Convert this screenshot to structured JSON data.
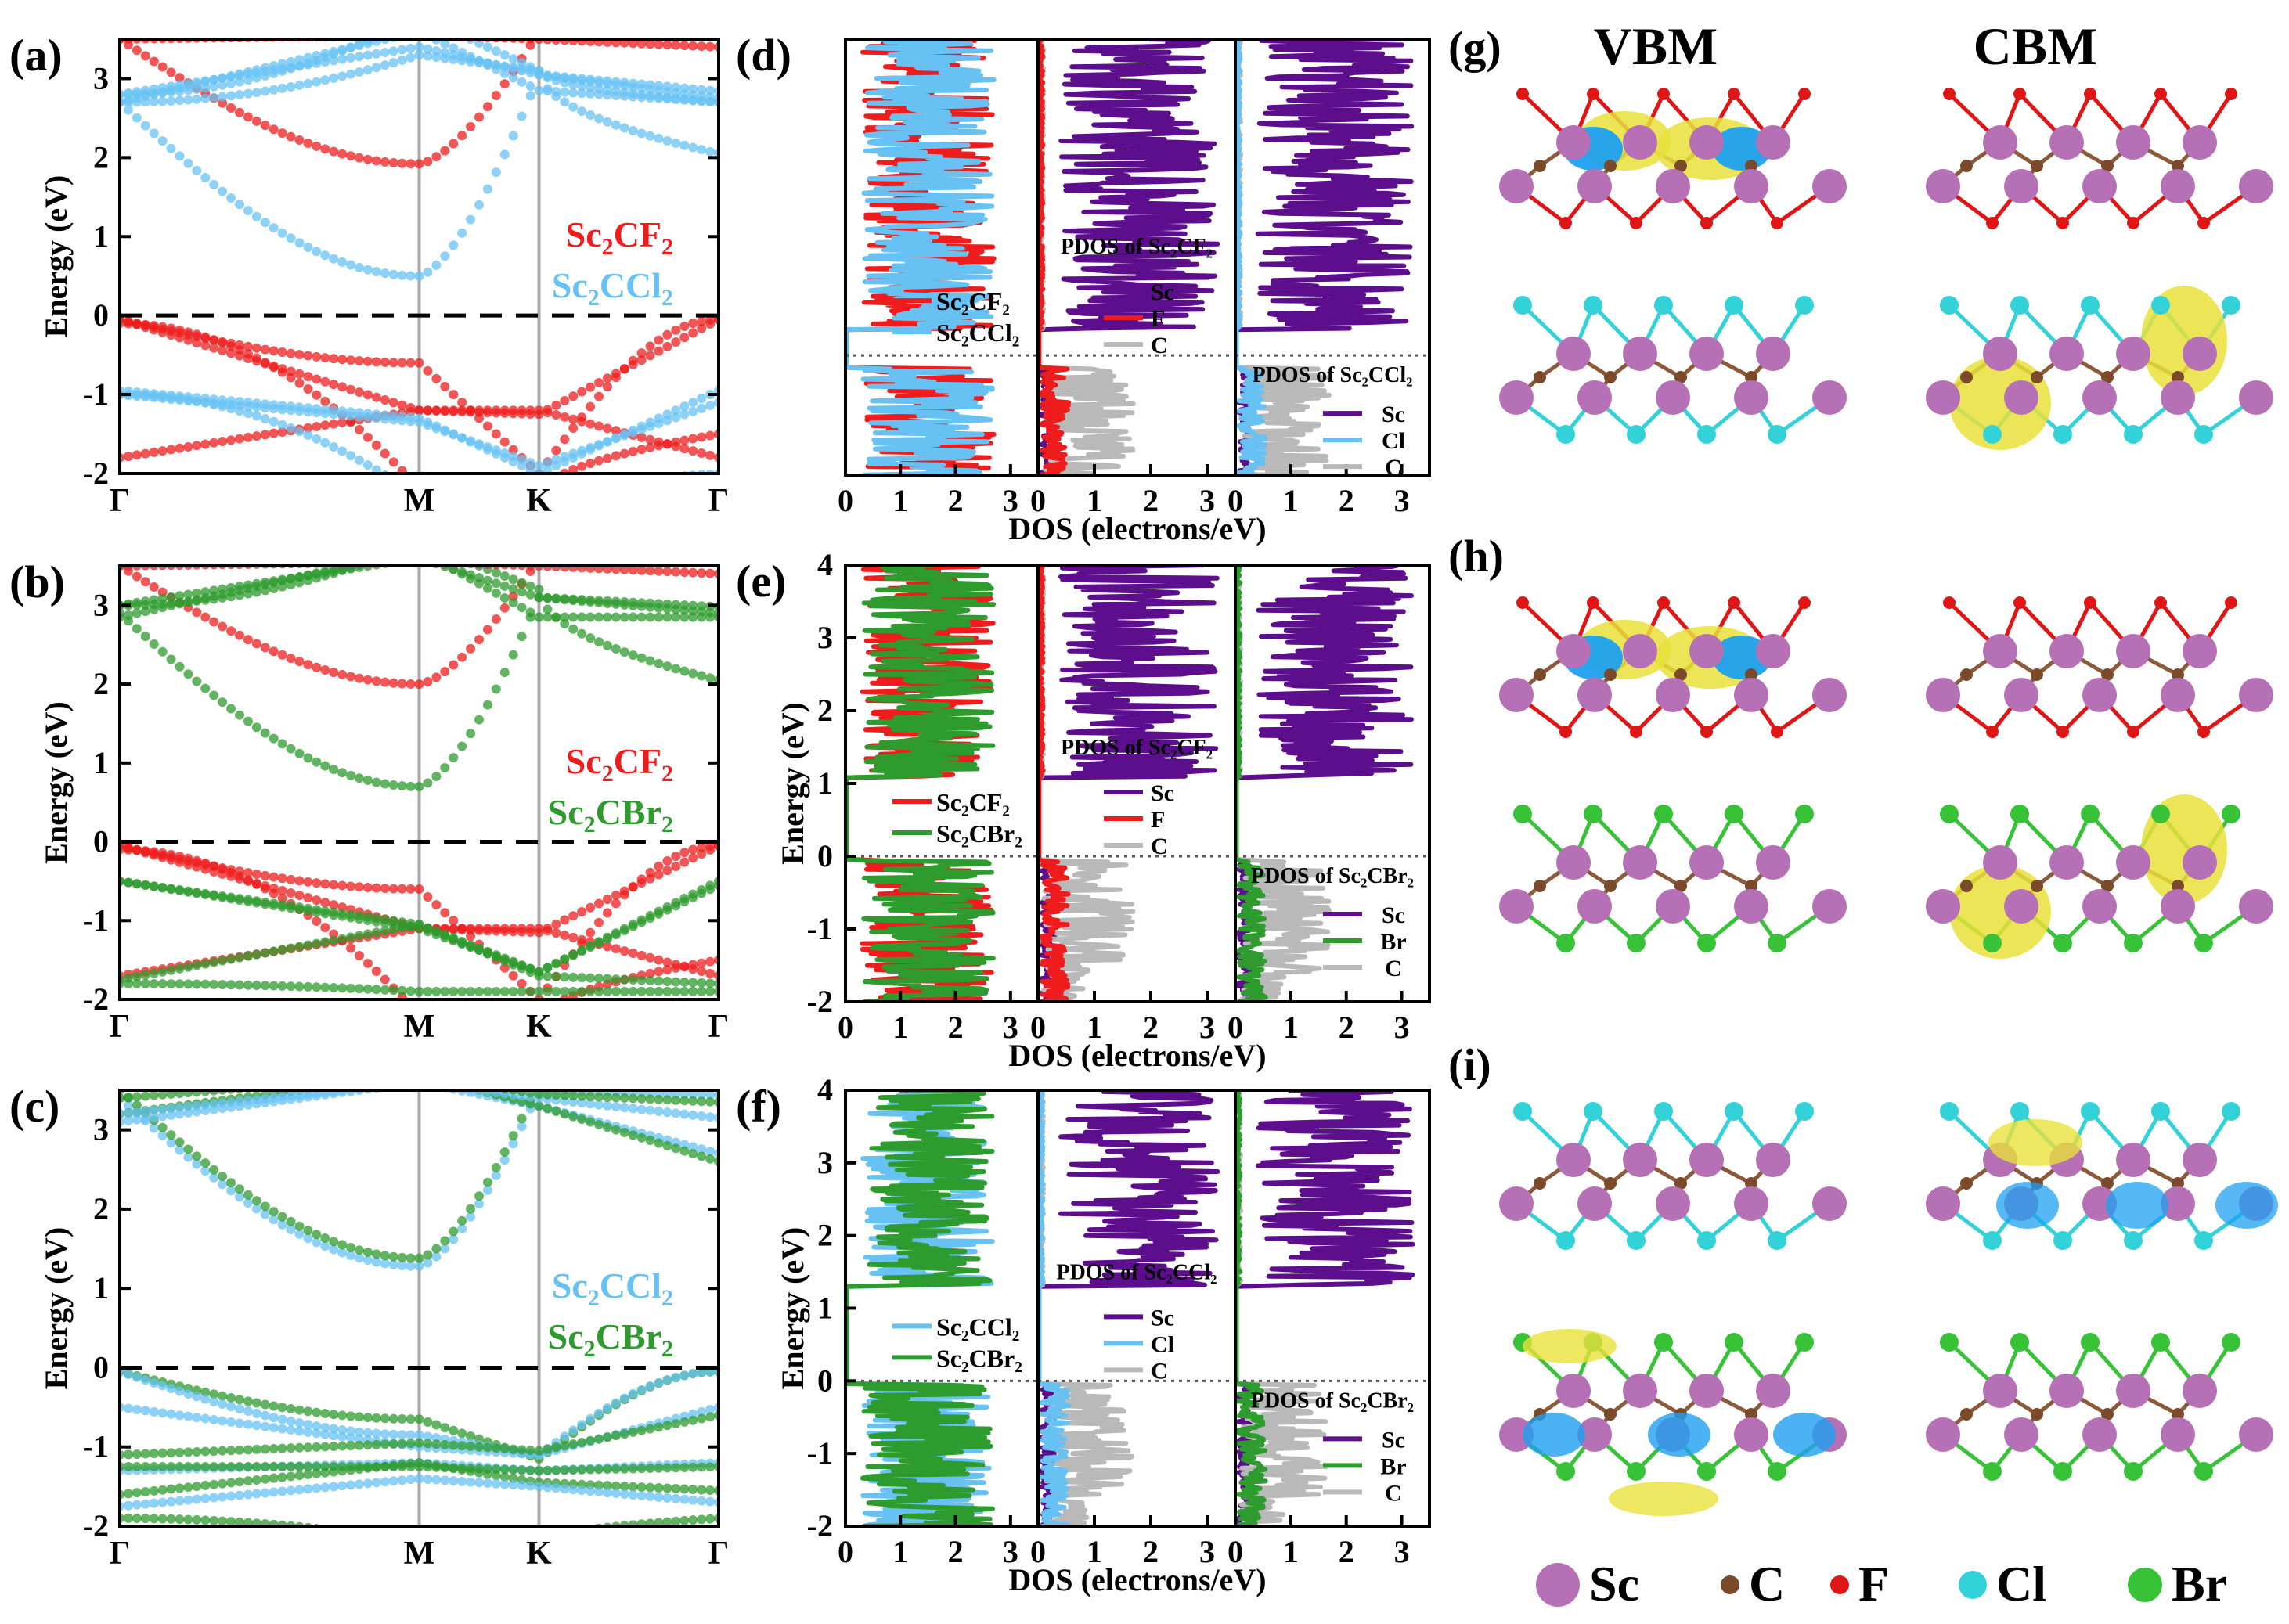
{
  "figure": {
    "panels": {
      "a": "(a)",
      "b": "(b)",
      "c": "(c)",
      "d": "(d)",
      "e": "(e)",
      "f": "(f)",
      "g": "(g)",
      "h": "(h)",
      "i": "(i)"
    },
    "colors": {
      "F": "#ee1c1c",
      "Cl": "#67c2f3",
      "Br": "#2e9b2e",
      "Sc": "#5c0e8c",
      "C": "#b9b9b9",
      "iso_yellow": "#e8e13a",
      "iso_cyan": "#1ea0f0",
      "atom_Sc": "#b670b5",
      "atom_C": "#7a4a2a",
      "atom_F": "#e01515",
      "atom_Cl": "#33d2d8",
      "atom_Br": "#38c238"
    },
    "band": {
      "ylabel": "Energy (eV)",
      "kpoints": [
        "Γ",
        "M",
        "K",
        "Γ"
      ],
      "yticks": [
        "-2",
        "-1",
        "0",
        "1",
        "2",
        "3"
      ],
      "ylim": [
        -2,
        3.5
      ],
      "panels": [
        {
          "id": "a",
          "legend": [
            {
              "text": "Sc",
              "sub1": "2",
              "mid": "CF",
              "sub2": "2",
              "color_key": "F"
            },
            {
              "text": "Sc",
              "sub1": "2",
              "mid": "CCl",
              "sub2": "2",
              "color_key": "Cl"
            }
          ]
        },
        {
          "id": "b",
          "legend": [
            {
              "text": "Sc",
              "sub1": "2",
              "mid": "CF",
              "sub2": "2",
              "color_key": "F"
            },
            {
              "text": "Sc",
              "sub1": "2",
              "mid": "CBr",
              "sub2": "2",
              "color_key": "Br"
            }
          ]
        },
        {
          "id": "c",
          "legend": [
            {
              "text": "Sc",
              "sub1": "2",
              "mid": "CCl",
              "sub2": "2",
              "color_key": "Cl"
            },
            {
              "text": "Sc",
              "sub1": "2",
              "mid": "CBr",
              "sub2": "2",
              "color_key": "Br"
            }
          ]
        }
      ]
    },
    "dos": {
      "xlabel": "DOS (electrons/eV)",
      "ylabel": "Energy (eV)",
      "xticks": [
        "0",
        "1",
        "2",
        "3"
      ],
      "yticks_efg": [
        "-2",
        "-1",
        "0",
        "1",
        "2",
        "3",
        "4"
      ],
      "panels": [
        {
          "id": "d",
          "show_yaxis": false,
          "total_legend": [
            {
              "label": "Sc₂CF₂",
              "color_key": "F"
            },
            {
              "label": "Sc₂CCl₂",
              "color_key": "Cl"
            }
          ],
          "pdos1_title": "PDOS of Sc₂CF₂",
          "pdos1_legend": [
            "Sc",
            "F",
            "C"
          ],
          "pdos2_title": "PDOS of Sc₂CCl₂",
          "pdos2_legend": [
            "Sc",
            "Cl",
            "C"
          ]
        },
        {
          "id": "e",
          "show_yaxis": true,
          "total_legend": [
            {
              "label": "Sc₂CF₂",
              "color_key": "F"
            },
            {
              "label": "Sc₂CBr₂",
              "color_key": "Br"
            }
          ],
          "pdos1_title": "PDOS of Sc₂CF₂",
          "pdos1_legend": [
            "Sc",
            "F",
            "C"
          ],
          "pdos2_title": "PDOS of Sc₂CBr₂",
          "pdos2_legend": [
            "Sc",
            "Br",
            "C"
          ]
        },
        {
          "id": "f",
          "show_yaxis": true,
          "total_legend": [
            {
              "label": "Sc₂CCl₂",
              "color_key": "Cl"
            },
            {
              "label": "Sc₂CBr₂",
              "color_key": "Br"
            }
          ],
          "pdos1_title": "PDOS of Sc₂CCl₂",
          "pdos1_legend": [
            "Sc",
            "Cl",
            "C"
          ],
          "pdos2_title": "PDOS of Sc₂CBr₂",
          "pdos2_legend": [
            "Sc",
            "Br",
            "C"
          ]
        }
      ]
    },
    "structures": {
      "col_headers": [
        "VBM",
        "CBM"
      ],
      "rows": [
        {
          "id": "g",
          "top_halogen": "F",
          "bottom_halogen": "Cl"
        },
        {
          "id": "h",
          "top_halogen": "F",
          "bottom_halogen": "Br"
        },
        {
          "id": "i",
          "top_halogen": "Cl",
          "bottom_halogen": "Br"
        }
      ],
      "atom_legend": [
        {
          "label": "Sc",
          "color_key": "atom_Sc"
        },
        {
          "label": "C",
          "color_key": "atom_C"
        },
        {
          "label": "F",
          "color_key": "atom_F"
        },
        {
          "label": "Cl",
          "color_key": "atom_Cl"
        },
        {
          "label": "Br",
          "color_key": "atom_Br"
        }
      ]
    }
  },
  "chart_data": [
    {
      "type": "line",
      "title": "(a)",
      "xlabel": "",
      "ylabel": "Energy (eV)",
      "ylim": [
        -2,
        3.5
      ],
      "x": [
        "Γ",
        "M",
        "K",
        "Γ"
      ],
      "series": [
        {
          "name": "Sc₂CF₂",
          "gap_eV": 1.92,
          "cbm_at": "M",
          "cbm_eV": 1.92,
          "vbm_at": "Γ",
          "vbm_eV": 0.0
        },
        {
          "name": "Sc₂CCl₂",
          "gap_eV": 0.5,
          "cbm_at": "M",
          "cbm_eV": 0.5,
          "vbm_at": "Γ",
          "vbm_eV": 0.0
        }
      ]
    },
    {
      "type": "line",
      "title": "(b)",
      "xlabel": "",
      "ylabel": "Energy (eV)",
      "ylim": [
        -2,
        3.5
      ],
      "x": [
        "Γ",
        "M",
        "K",
        "Γ"
      ],
      "series": [
        {
          "name": "Sc₂CF₂",
          "gap_eV": 2.0,
          "cbm_at": "M",
          "cbm_eV": 2.0,
          "vbm_at": "Γ",
          "vbm_eV": 0.0
        },
        {
          "name": "Sc₂CBr₂",
          "gap_eV": 0.7,
          "cbm_at": "M",
          "cbm_eV": 0.7,
          "vbm_at": "Γ",
          "vbm_eV": 0.0
        }
      ]
    },
    {
      "type": "line",
      "title": "(c)",
      "xlabel": "",
      "ylabel": "Energy (eV)",
      "ylim": [
        -2,
        3.5
      ],
      "x": [
        "Γ",
        "M",
        "K",
        "Γ"
      ],
      "series": [
        {
          "name": "Sc₂CCl₂",
          "gap_eV": 1.28,
          "cbm_at": "M",
          "cbm_eV": 1.28,
          "vbm_at": "Γ",
          "vbm_eV": 0.0
        },
        {
          "name": "Sc₂CBr₂",
          "gap_eV": 1.38,
          "cbm_at": "M",
          "cbm_eV": 1.38,
          "vbm_at": "Γ",
          "vbm_eV": 0.0
        }
      ]
    },
    {
      "type": "line",
      "title": "(d)",
      "xlabel": "DOS (electrons/eV)",
      "ylabel": "Energy (eV)",
      "xlim": [
        0,
        3.5
      ],
      "ylim": [
        -2,
        3.5
      ],
      "series": [
        {
          "name": "Sc₂CF₂"
        },
        {
          "name": "Sc₂CCl₂"
        },
        {
          "name": "Sc"
        },
        {
          "name": "F"
        },
        {
          "name": "Cl"
        },
        {
          "name": "C"
        }
      ]
    },
    {
      "type": "line",
      "title": "(e)",
      "xlabel": "DOS (electrons/eV)",
      "ylabel": "Energy (eV)",
      "xlim": [
        0,
        3.5
      ],
      "ylim": [
        -2,
        4
      ],
      "series": [
        {
          "name": "Sc₂CF₂"
        },
        {
          "name": "Sc₂CBr₂"
        },
        {
          "name": "Sc"
        },
        {
          "name": "F"
        },
        {
          "name": "Br"
        },
        {
          "name": "C"
        }
      ]
    },
    {
      "type": "line",
      "title": "(f)",
      "xlabel": "DOS (electrons/eV)",
      "ylabel": "Energy (eV)",
      "xlim": [
        0,
        3.5
      ],
      "ylim": [
        -2,
        4
      ],
      "series": [
        {
          "name": "Sc₂CCl₂"
        },
        {
          "name": "Sc₂CBr₂"
        },
        {
          "name": "Sc"
        },
        {
          "name": "Cl"
        },
        {
          "name": "Br"
        },
        {
          "name": "C"
        }
      ]
    }
  ]
}
